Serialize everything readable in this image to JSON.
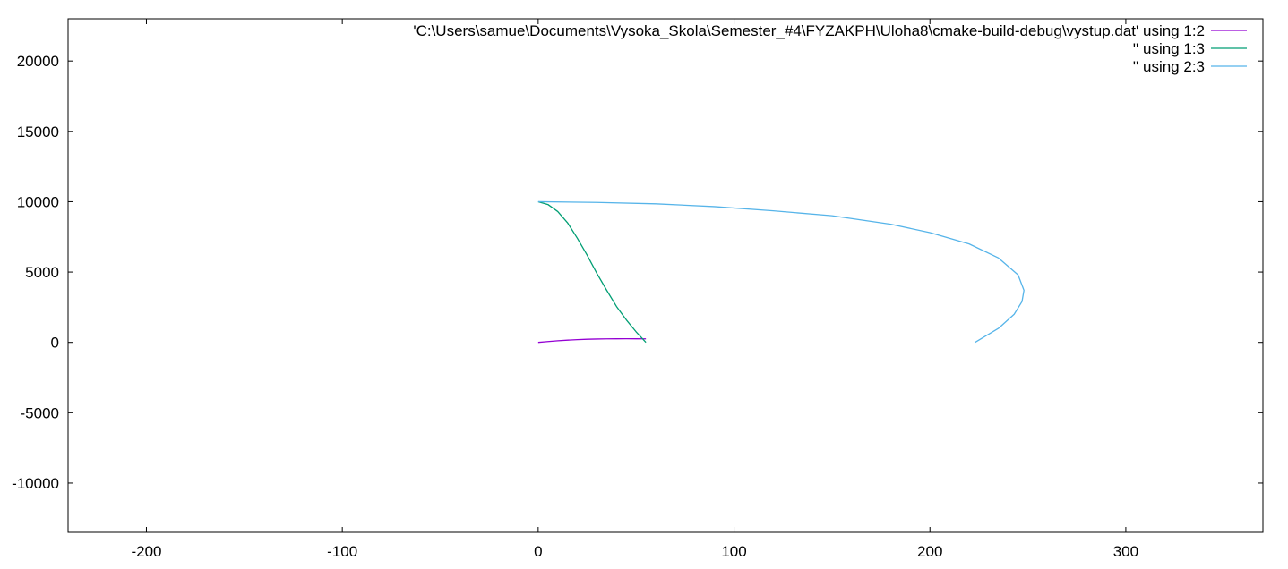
{
  "chart_data": {
    "type": "line",
    "title": "",
    "xlabel": "",
    "ylabel": "",
    "xlim": [
      -240,
      370
    ],
    "ylim": [
      -13500,
      23000
    ],
    "xticks": [
      -200,
      -100,
      0,
      100,
      200,
      300
    ],
    "xtick_labels": [
      "-200",
      "-100",
      "0",
      "100",
      "200",
      "300"
    ],
    "yticks": [
      -10000,
      -5000,
      0,
      5000,
      10000,
      15000,
      20000
    ],
    "ytick_labels": [
      "-10000",
      "-5000",
      "0",
      "5000",
      "10000",
      "15000",
      "20000"
    ],
    "grid": false,
    "legend_position": "top-right",
    "series": [
      {
        "name": "'C:\\Users\\samue\\Documents\\Vysoka_Skola\\Semester_#4\\FYZAKPH\\Uloha8\\cmake-build-debug\\vystup.dat' using 1:2",
        "color": "#9400d3",
        "x": [
          0,
          5,
          10,
          15,
          20,
          25,
          30,
          35,
          40,
          45,
          50,
          55
        ],
        "y": [
          0,
          60,
          115,
          160,
          195,
          222,
          240,
          250,
          256,
          258,
          256,
          252
        ]
      },
      {
        "name": "'' using 1:3",
        "color": "#009e73",
        "x": [
          0,
          5,
          10,
          15,
          20,
          25,
          30,
          35,
          40,
          45,
          50,
          55
        ],
        "y": [
          10000,
          9800,
          9300,
          8500,
          7400,
          6200,
          4900,
          3700,
          2550,
          1600,
          750,
          0
        ]
      },
      {
        "name": "'' using 2:3",
        "color": "#56b4e9",
        "x": [
          0,
          30,
          60,
          90,
          120,
          150,
          180,
          200,
          220,
          235,
          245,
          248,
          247,
          243,
          235,
          223
        ],
        "y": [
          10000,
          9950,
          9850,
          9650,
          9350,
          9000,
          8400,
          7800,
          7000,
          6000,
          4800,
          3700,
          2900,
          2000,
          1000,
          0
        ]
      }
    ]
  }
}
